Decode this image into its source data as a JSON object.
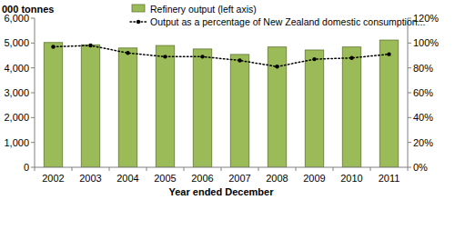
{
  "chart_data": {
    "type": "bar",
    "y_label": "000 tonnes",
    "x_label": "Year ended December",
    "categories": [
      "2002",
      "2003",
      "2004",
      "2005",
      "2006",
      "2007",
      "2008",
      "2009",
      "2010",
      "2011"
    ],
    "series": [
      {
        "name": "Refinery output (left axis)",
        "type": "bar",
        "color": "#9bbb59",
        "values": [
          5020,
          4930,
          4800,
          4900,
          4760,
          4540,
          4840,
          4720,
          4840,
          5120
        ]
      },
      {
        "name": "Output as a percentage of New Zealand domestic consumption...",
        "type": "line",
        "axis": "y2",
        "color": "#000000",
        "marker": "circle",
        "line_style": "dotted",
        "values": [
          97,
          98,
          92,
          89,
          89,
          86,
          81,
          87,
          88,
          91
        ]
      }
    ],
    "ylim": [
      0,
      6000
    ],
    "yticks": [
      0,
      {
        "value": 1000,
        "label": "1,000"
      },
      {
        "value": 2000,
        "label": "2,000"
      },
      {
        "value": 3000,
        "label": "3,000"
      },
      {
        "value": 4000,
        "label": "4,000"
      },
      {
        "value": 5000,
        "label": "5,000"
      },
      {
        "value": 6000,
        "label": "6,000"
      }
    ],
    "y2lim": [
      0,
      120
    ],
    "y2ticks": [
      {
        "value": 0,
        "label": "0%"
      },
      {
        "value": 20,
        "label": "20%"
      },
      {
        "value": 40,
        "label": "40%"
      },
      {
        "value": 60,
        "label": "60%"
      },
      {
        "value": 80,
        "label": "80%"
      },
      {
        "value": 100,
        "label": "100%"
      },
      {
        "value": 120,
        "label": "120%"
      }
    ],
    "grid": false,
    "legend": "top"
  }
}
